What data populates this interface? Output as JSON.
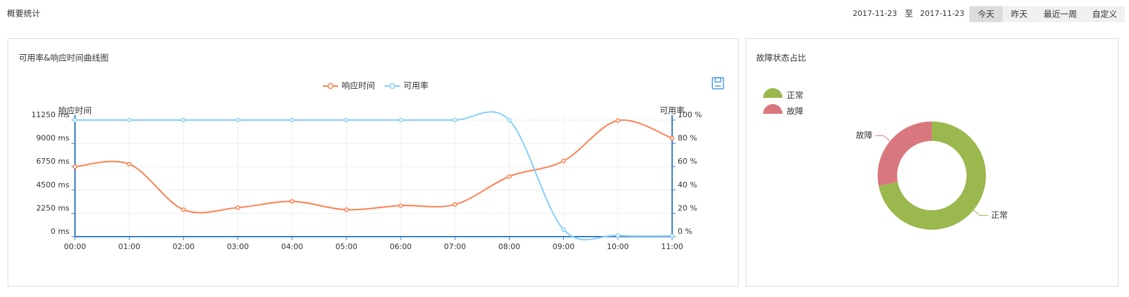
{
  "header": {
    "title": "概要统计",
    "date_from": "2017-11-23",
    "separator": "至",
    "date_to": "2017-11-23",
    "buttons": [
      "今天",
      "昨天",
      "最近一周",
      "自定义"
    ]
  },
  "chart_data": [
    {
      "type": "line",
      "title": "可用率&响应时间曲线图",
      "categories": [
        "00:00",
        "01:00",
        "02:00",
        "03:00",
        "04:00",
        "05:00",
        "06:00",
        "07:00",
        "08:00",
        "09:00",
        "10:00",
        "11:00"
      ],
      "ylabel": "响应时间",
      "y2label": "可用率",
      "series": [
        {
          "name": "响应时间",
          "color": "#ff7f50",
          "values": [
            6750,
            7000,
            2600,
            2800,
            3400,
            2600,
            3000,
            3100,
            5800,
            7300,
            11200,
            9500
          ]
        },
        {
          "name": "可用率",
          "color": "#87cefa",
          "axis": "y2",
          "values": [
            100,
            100,
            100,
            100,
            100,
            100,
            100,
            100,
            100,
            6,
            1,
            0.5
          ]
        }
      ],
      "ylim": [
        0,
        11250
      ],
      "yticks": [
        {
          "value": 0,
          "label": "0 ms"
        },
        {
          "value": 2250,
          "label": "2250 ms"
        },
        {
          "value": 4500,
          "label": "4500 ms"
        },
        {
          "value": 6750,
          "label": "6750 ms"
        },
        {
          "value": 9000,
          "label": "9000 ms"
        },
        {
          "value": 11250,
          "label": "11250 ms"
        }
      ],
      "y2lim": [
        0,
        100
      ],
      "y2ticks": [
        {
          "value": 0,
          "label": "0 %"
        },
        {
          "value": 20,
          "label": "20 %"
        },
        {
          "value": 40,
          "label": "40 %"
        },
        {
          "value": 60,
          "label": "60 %"
        },
        {
          "value": 80,
          "label": "80 %"
        },
        {
          "value": 100,
          "label": "100 %"
        }
      ],
      "grid": true,
      "smooth": true,
      "legend": "top"
    },
    {
      "type": "pie",
      "title": "故障状态占比",
      "categories": [
        "正常",
        "故障"
      ],
      "values": [
        72,
        28
      ],
      "colors": [
        "#9bb84e",
        "#d8787e"
      ],
      "legend": "top-left"
    }
  ]
}
